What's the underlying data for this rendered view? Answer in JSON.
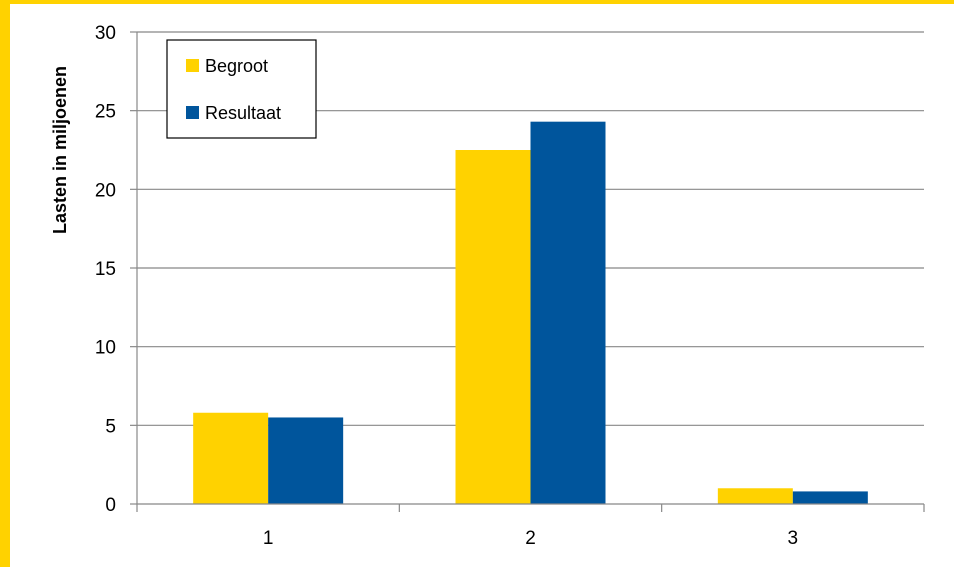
{
  "chart_data": {
    "type": "bar",
    "title": "",
    "xlabel": "",
    "ylabel": "Lasten in miljoenen",
    "categories": [
      "1",
      "2",
      "3"
    ],
    "series": [
      {
        "name": "Begroot",
        "color": "#FFD200",
        "values": [
          5.8,
          22.5,
          1.0
        ]
      },
      {
        "name": "Resultaat",
        "color": "#00559C",
        "values": [
          5.5,
          24.3,
          0.8
        ]
      }
    ],
    "ylim": [
      0,
      30
    ],
    "yticks": [
      "0",
      "5",
      "10",
      "15",
      "20",
      "25",
      "30"
    ],
    "grid": true,
    "legend_position": "top-left"
  },
  "colors": {
    "frame": "#FFD200",
    "gridline": "#888888"
  }
}
